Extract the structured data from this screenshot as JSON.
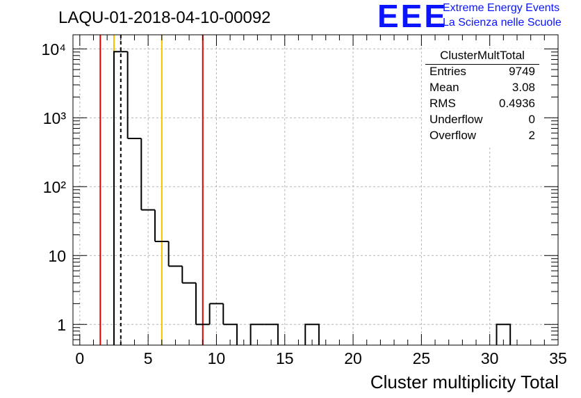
{
  "title": "LAQU-01-2018-04-10-00092",
  "logo": {
    "text": "EEE",
    "line1": "Extreme Energy Events",
    "line2": "La Scienza nelle Scuole",
    "color": "#0a14ff"
  },
  "stats": {
    "title": "ClusterMultTotal",
    "rows": [
      {
        "key": "Entries",
        "value": "9749"
      },
      {
        "key": "Mean",
        "value": "3.08"
      },
      {
        "key": "RMS",
        "value": "0.4936"
      },
      {
        "key": "Underflow",
        "value": "0"
      },
      {
        "key": "Overflow",
        "value": "2"
      }
    ]
  },
  "chart_data": {
    "type": "bar",
    "style": "step-histogram",
    "xlabel": "Cluster multiplicity Total",
    "ylabel": "",
    "xlim": [
      -0.5,
      35
    ],
    "ylim": [
      0.5,
      16000
    ],
    "ylog": true,
    "grid": true,
    "xticks": [
      0,
      5,
      10,
      15,
      20,
      25,
      30,
      35
    ],
    "yticks": [
      {
        "value": 1,
        "label": "1"
      },
      {
        "value": 10,
        "label": "10"
      },
      {
        "value": 100,
        "label": "10²"
      },
      {
        "value": 1000,
        "label": "10³"
      },
      {
        "value": 10000,
        "label": "10⁴"
      }
    ],
    "bin_width": 1,
    "bins": [
      {
        "x": 3,
        "y": 9100
      },
      {
        "x": 4,
        "y": 500
      },
      {
        "x": 5,
        "y": 46
      },
      {
        "x": 6,
        "y": 16
      },
      {
        "x": 7,
        "y": 7
      },
      {
        "x": 8,
        "y": 4
      },
      {
        "x": 9,
        "y": 1
      },
      {
        "x": 10,
        "y": 2
      },
      {
        "x": 11,
        "y": 1
      },
      {
        "x": 13,
        "y": 1
      },
      {
        "x": 14,
        "y": 1
      },
      {
        "x": 17,
        "y": 1
      },
      {
        "x": 31,
        "y": 1
      }
    ],
    "vlines": [
      {
        "x": 1.5,
        "color": "#e00000",
        "style": "solid"
      },
      {
        "x": 2.5,
        "color": "#f5c000",
        "style": "solid"
      },
      {
        "x": 3.0,
        "color": "#000000",
        "style": "dashed"
      },
      {
        "x": 6.0,
        "color": "#f5c000",
        "style": "solid"
      },
      {
        "x": 9.0,
        "color": "#e00000",
        "style": "solid"
      }
    ]
  }
}
